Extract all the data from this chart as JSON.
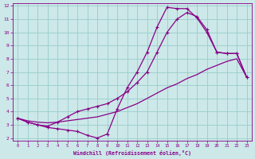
{
  "xlabel": "Windchill (Refroidissement éolien,°C)",
  "bg_color": "#cce8e8",
  "line_color": "#880088",
  "grid_color": "#99cccc",
  "xlim": [
    -0.5,
    23.5
  ],
  "ylim": [
    1.8,
    12.2
  ],
  "xticks": [
    0,
    1,
    2,
    3,
    4,
    5,
    6,
    7,
    8,
    9,
    10,
    11,
    12,
    13,
    14,
    15,
    16,
    17,
    18,
    19,
    20,
    21,
    22,
    23
  ],
  "yticks": [
    2,
    3,
    4,
    5,
    6,
    7,
    8,
    9,
    10,
    11,
    12
  ],
  "line1_x": [
    0,
    1,
    2,
    3,
    4,
    5,
    6,
    7,
    8,
    9,
    10,
    11,
    12,
    13,
    14,
    15,
    16,
    17,
    18,
    19,
    20,
    21,
    22,
    23
  ],
  "line1_y": [
    3.5,
    3.2,
    3.0,
    2.8,
    2.7,
    2.6,
    2.5,
    2.2,
    2.0,
    2.3,
    4.2,
    5.8,
    7.0,
    8.5,
    10.4,
    11.9,
    11.8,
    11.8,
    11.1,
    10.0,
    8.5,
    8.4,
    8.4,
    6.6
  ],
  "line2_x": [
    0,
    1,
    2,
    3,
    4,
    5,
    6,
    7,
    8,
    9,
    10,
    11,
    12,
    13,
    14,
    15,
    16,
    17,
    18,
    19,
    20,
    21,
    22,
    23
  ],
  "line2_y": [
    3.5,
    3.3,
    3.2,
    3.15,
    3.2,
    3.3,
    3.4,
    3.5,
    3.6,
    3.8,
    4.0,
    4.3,
    4.6,
    5.0,
    5.4,
    5.8,
    6.1,
    6.5,
    6.8,
    7.2,
    7.5,
    7.8,
    8.0,
    6.6
  ],
  "line3_x": [
    0,
    1,
    2,
    3,
    4,
    5,
    6,
    7,
    8,
    9,
    10,
    11,
    12,
    13,
    14,
    15,
    16,
    17,
    18,
    19,
    20,
    21,
    22,
    23
  ],
  "line3_y": [
    3.5,
    3.2,
    3.0,
    2.9,
    3.2,
    3.6,
    4.0,
    4.2,
    4.4,
    4.6,
    5.0,
    5.5,
    6.2,
    7.0,
    8.5,
    10.0,
    11.0,
    11.5,
    11.2,
    10.2,
    8.5,
    8.4,
    8.4,
    6.6
  ]
}
